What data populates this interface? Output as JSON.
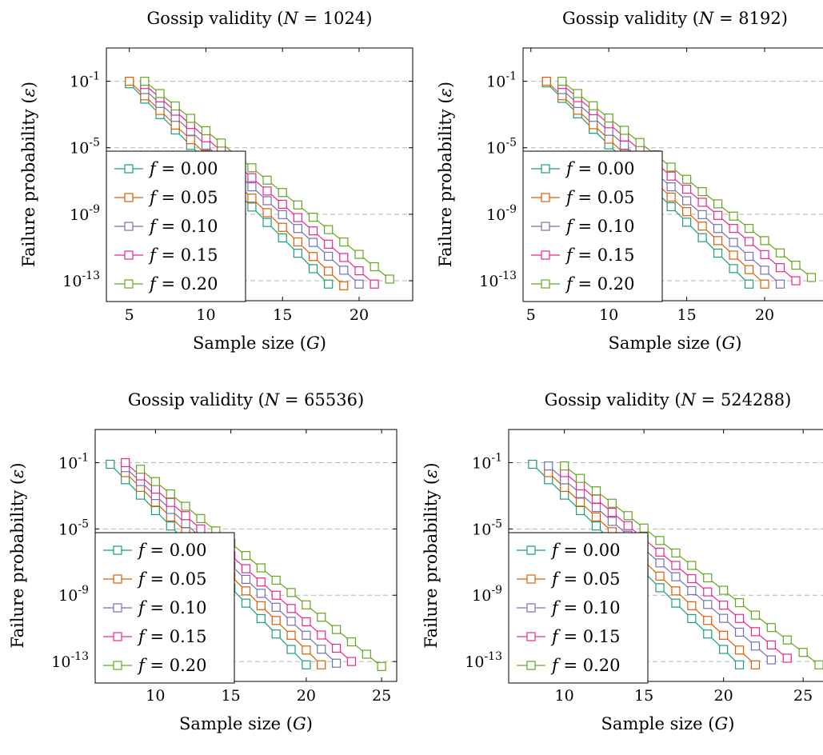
{
  "colors": {
    "f0": "#1b9e77",
    "f05": "#d95f02",
    "f10": "#7570b3",
    "f15": "#e7298a",
    "f20": "#66a61e",
    "grid": "#b5b5b5",
    "axis": "#000000"
  },
  "chart_data": [
    {
      "type": "line",
      "title_prefix": "Gossip validity (",
      "title_var": "N",
      "title_suffix": " = 1024)",
      "xlabel_prefix": "Sample size (",
      "xlabel_var": "G",
      "xlabel_suffix": ")",
      "ylabel_prefix": "Failure probability (",
      "ylabel_var": "ε",
      "ylabel_suffix": ")",
      "xlim": [
        3.5,
        23.5
      ],
      "ylim_log10": [
        -14.2,
        1.0
      ],
      "y_scale": "log",
      "x_ticks": [
        5,
        10,
        15,
        20
      ],
      "y_ticks_exp": [
        -1,
        -5,
        -9,
        -13
      ],
      "grid": "y dashed",
      "legend_placement": "lower-left",
      "series": [
        {
          "name": "f = 0.00",
          "color_key": "f0",
          "x_start": 5,
          "log10_start": -1.15,
          "log10_end": -13.2,
          "x_end": 18
        },
        {
          "name": "f = 0.05",
          "color_key": "f05",
          "x_start": 5,
          "log10_start": -1.0,
          "log10_end": -13.3,
          "x_end": 19
        },
        {
          "name": "f = 0.10",
          "color_key": "f10",
          "x_start": 6,
          "log10_start": -1.5,
          "log10_end": -13.2,
          "x_end": 20
        },
        {
          "name": "f = 0.15",
          "color_key": "f15",
          "x_start": 6,
          "log10_start": -1.2,
          "log10_end": -13.2,
          "x_end": 21
        },
        {
          "name": "f = 0.20",
          "color_key": "f20",
          "x_start": 6,
          "log10_start": -1.0,
          "log10_end": -12.9,
          "x_end": 22
        }
      ]
    },
    {
      "type": "line",
      "title_prefix": "Gossip validity (",
      "title_var": "N",
      "title_suffix": " = 8192)",
      "xlabel_prefix": "Sample size (",
      "xlabel_var": "G",
      "xlabel_suffix": ")",
      "ylabel_prefix": "Failure probability (",
      "ylabel_var": "ε",
      "ylabel_suffix": ")",
      "xlim": [
        4.5,
        24.0
      ],
      "ylim_log10": [
        -14.2,
        1.0
      ],
      "y_scale": "log",
      "x_ticks": [
        5,
        10,
        15,
        20
      ],
      "y_ticks_exp": [
        -1,
        -5,
        -9,
        -13
      ],
      "grid": "y dashed",
      "legend_placement": "lower-left",
      "series": [
        {
          "name": "f = 0.00",
          "color_key": "f0",
          "x_start": 6,
          "log10_start": -1.1,
          "log10_end": -13.2,
          "x_end": 19
        },
        {
          "name": "f = 0.05",
          "color_key": "f05",
          "x_start": 6,
          "log10_start": -1.0,
          "log10_end": -13.2,
          "x_end": 20
        },
        {
          "name": "f = 0.10",
          "color_key": "f10",
          "x_start": 7,
          "log10_start": -1.5,
          "log10_end": -13.2,
          "x_end": 21
        },
        {
          "name": "f = 0.15",
          "color_key": "f15",
          "x_start": 7,
          "log10_start": -1.2,
          "log10_end": -13.0,
          "x_end": 22
        },
        {
          "name": "f = 0.20",
          "color_key": "f20",
          "x_start": 7,
          "log10_start": -1.0,
          "log10_end": -12.8,
          "x_end": 23
        }
      ]
    },
    {
      "type": "line",
      "title_prefix": "Gossip validity (",
      "title_var": "N",
      "title_suffix": " = 65536)",
      "xlabel_prefix": "Sample size (",
      "xlabel_var": "G",
      "xlabel_suffix": ")",
      "ylabel_prefix": "Failure probability (",
      "ylabel_var": "ε",
      "ylabel_suffix": ")",
      "xlim": [
        6.0,
        26.0
      ],
      "ylim_log10": [
        -14.2,
        1.0
      ],
      "y_scale": "log",
      "x_ticks": [
        10,
        15,
        20,
        25
      ],
      "y_ticks_exp": [
        -1,
        -5,
        -9,
        -13
      ],
      "grid": "y dashed",
      "legend_placement": "lower-left",
      "series": [
        {
          "name": "f = 0.00",
          "color_key": "f0",
          "x_start": 7,
          "log10_start": -1.1,
          "log10_end": -13.2,
          "x_end": 20
        },
        {
          "name": "f = 0.05",
          "color_key": "f05",
          "x_start": 8,
          "log10_start": -1.6,
          "log10_end": -13.2,
          "x_end": 21
        },
        {
          "name": "f = 0.10",
          "color_key": "f10",
          "x_start": 8,
          "log10_start": -1.3,
          "log10_end": -13.1,
          "x_end": 22
        },
        {
          "name": "f = 0.15",
          "color_key": "f15",
          "x_start": 8,
          "log10_start": -1.0,
          "log10_end": -13.0,
          "x_end": 23
        },
        {
          "name": "f = 0.20",
          "color_key": "f20",
          "x_start": 9,
          "log10_start": -1.4,
          "log10_end": -13.3,
          "x_end": 25
        }
      ]
    },
    {
      "type": "line",
      "title_prefix": "Gossip validity (",
      "title_var": "N",
      "title_suffix": " = 524288)",
      "xlabel_prefix": "Sample size (",
      "xlabel_var": "G",
      "xlabel_suffix": ")",
      "ylabel_prefix": "Failure probability (",
      "ylabel_var": "ε",
      "ylabel_suffix": ")",
      "xlim": [
        6.5,
        26.5
      ],
      "ylim_log10": [
        -14.2,
        1.0
      ],
      "y_scale": "log",
      "x_ticks": [
        10,
        15,
        20,
        25
      ],
      "y_ticks_exp": [
        -1,
        -5,
        -9,
        -13
      ],
      "grid": "y dashed",
      "legend_placement": "lower-left",
      "series": [
        {
          "name": "f = 0.00",
          "color_key": "f0",
          "x_start": 8,
          "log10_start": -1.1,
          "log10_end": -13.2,
          "x_end": 21
        },
        {
          "name": "f = 0.05",
          "color_key": "f05",
          "x_start": 9,
          "log10_start": -1.6,
          "log10_end": -13.2,
          "x_end": 22
        },
        {
          "name": "f = 0.10",
          "color_key": "f10",
          "x_start": 9,
          "log10_start": -1.2,
          "log10_end": -12.9,
          "x_end": 23
        },
        {
          "name": "f = 0.15",
          "color_key": "f15",
          "x_start": 10,
          "log10_start": -1.6,
          "log10_end": -12.8,
          "x_end": 24
        },
        {
          "name": "f = 0.20",
          "color_key": "f20",
          "x_start": 10,
          "log10_start": -1.2,
          "log10_end": -13.2,
          "x_end": 26
        }
      ]
    }
  ]
}
